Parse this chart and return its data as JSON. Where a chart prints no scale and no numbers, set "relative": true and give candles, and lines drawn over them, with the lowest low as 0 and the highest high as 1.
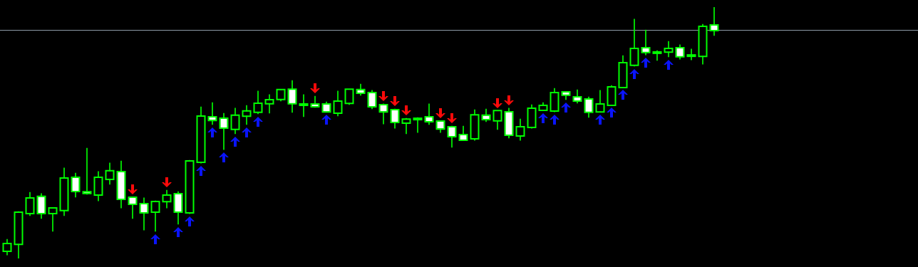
{
  "chart_data": {
    "type": "candlestick",
    "relative": true,
    "legend": false,
    "color": "#00ff00",
    "colors": [
      "#000000",
      "#000000",
      "#000000",
      "#ffffff",
      "#000000",
      "#000000",
      "#ffffff",
      "#ffffff",
      "#000000",
      "#000000",
      "#ffffff",
      "#ffffff",
      "#ffffff",
      "#000000",
      "#000000",
      "#ffffff",
      "#000000",
      "#000000",
      "#ffffff",
      "#ffffff",
      "#000000",
      "#000000",
      "#000000",
      "#000000",
      "#000000",
      "#ffffff",
      "#000000",
      "#ffffff",
      "#ffffff",
      "#000000",
      "#000000",
      "#ffffff",
      "#ffffff",
      "#ffffff",
      "#ffffff",
      "#000000",
      "#000000",
      "#ffffff",
      "#ffffff",
      "#ffffff",
      "#ffffff",
      "#000000",
      "#ffffff",
      "#000000",
      "#ffffff",
      "#000000",
      "#000000",
      "#000000",
      "#000000",
      "#ffffff",
      "#ffffff",
      "#ffffff",
      "#000000",
      "#000000",
      "#000000",
      "#000000",
      "#ffffff",
      "#000000",
      "#000000",
      "#ffffff",
      "#000000",
      "#000000",
      "#ffffff"
    ],
    "categories": [
      null,
      null,
      null,
      null,
      null,
      null,
      null,
      null,
      null,
      null,
      null,
      null,
      null,
      null,
      null,
      null,
      null,
      null,
      null,
      null,
      null,
      null,
      null,
      null,
      null,
      null,
      null,
      null,
      null,
      null,
      null,
      null,
      null,
      null,
      null,
      null,
      null,
      null,
      null,
      null,
      null,
      null,
      null,
      null,
      null,
      null,
      null,
      null,
      null,
      null,
      null,
      null,
      null,
      null,
      null,
      null,
      null,
      null,
      null,
      null,
      null,
      null,
      null
    ],
    "ohlc": [
      [
        0.031,
        0.076,
        0.014,
        0.057
      ],
      [
        0.059,
        0.187,
        0,
        0.181
      ],
      [
        0.181,
        0.263,
        0.17,
        0.238
      ],
      [
        0.244,
        0.258,
        0.159,
        0.181
      ],
      [
        0.181,
        0.201,
        0.108,
        0.198
      ],
      [
        0.193,
        0.36,
        0.17,
        0.317
      ],
      [
        0.32,
        0.34,
        0.244,
        0.269
      ],
      [
        0.263,
        0.439,
        0.255,
        0.261
      ],
      [
        0.255,
        0.346,
        0.229,
        0.32
      ],
      [
        0.317,
        0.38,
        0.295,
        0.346
      ],
      [
        0.343,
        0.388,
        0.201,
        0.238
      ],
      [
        0.241,
        0.244,
        0.159,
        0.218
      ],
      [
        0.215,
        0.241,
        0.113,
        0.184
      ],
      [
        0.187,
        0.229,
        0.108,
        0.224
      ],
      [
        0.229,
        0.272,
        0.201,
        0.249
      ],
      [
        0.255,
        0.266,
        0.136,
        0.187
      ],
      [
        0.184,
        0.391,
        0.178,
        0.385
      ],
      [
        0.385,
        0.603,
        0.379,
        0.564
      ],
      [
        0.561,
        0.62,
        0.533,
        0.552
      ],
      [
        0.555,
        0.578,
        0.433,
        0.521
      ],
      [
        0.516,
        0.598,
        0.496,
        0.567
      ],
      [
        0.569,
        0.609,
        0.533,
        0.584
      ],
      [
        0.584,
        0.666,
        0.575,
        0.615
      ],
      [
        0.618,
        0.652,
        0.578,
        0.629
      ],
      [
        0.635,
        0.671,
        0.626,
        0.669
      ],
      [
        0.671,
        0.708,
        0.581,
        0.618
      ],
      [
        0.612,
        0.652,
        0.564,
        0.612
      ],
      [
        0.612,
        0.646,
        0.601,
        0.606
      ],
      [
        0.612,
        0.623,
        0.584,
        0.586
      ],
      [
        0.581,
        0.666,
        0.567,
        0.623
      ],
      [
        0.62,
        0.671,
        0.612,
        0.671
      ],
      [
        0.669,
        0.694,
        0.649,
        0.66
      ],
      [
        0.657,
        0.669,
        0.595,
        0.606
      ],
      [
        0.609,
        0.615,
        0.535,
        0.586
      ],
      [
        0.589,
        0.595,
        0.518,
        0.544
      ],
      [
        0.541,
        0.558,
        0.496,
        0.552
      ],
      [
        0.555,
        0.561,
        0.501,
        0.555
      ],
      [
        0.561,
        0.615,
        0.533,
        0.547
      ],
      [
        0.544,
        0.547,
        0.501,
        0.518
      ],
      [
        0.521,
        0.527,
        0.442,
        0.487
      ],
      [
        0.49,
        0.527,
        0.47,
        0.473
      ],
      [
        0.479,
        0.592,
        0.47,
        0.569
      ],
      [
        0.567,
        0.595,
        0.544,
        0.555
      ],
      [
        0.55,
        0.586,
        0.513,
        0.586
      ],
      [
        0.581,
        0.598,
        0.479,
        0.493
      ],
      [
        0.49,
        0.555,
        0.47,
        0.521
      ],
      [
        0.524,
        0.612,
        0.518,
        0.595
      ],
      [
        0.592,
        0.62,
        0.589,
        0.606
      ],
      [
        0.589,
        0.677,
        0.583,
        0.657
      ],
      [
        0.66,
        0.663,
        0.632,
        0.652
      ],
      [
        0.64,
        0.671,
        0.618,
        0.629
      ],
      [
        0.632,
        0.643,
        0.561,
        0.584
      ],
      [
        0.586,
        0.669,
        0.584,
        0.612
      ],
      [
        0.612,
        0.688,
        0.612,
        0.68
      ],
      [
        0.683,
        0.807,
        0.683,
        0.776
      ],
      [
        0.771,
        0.952,
        0.765,
        0.833
      ],
      [
        0.836,
        0.909,
        0.81,
        0.822
      ],
      [
        0.819,
        0.827,
        0.788,
        0.819
      ],
      [
        0.824,
        0.864,
        0.802,
        0.833
      ],
      [
        0.836,
        0.85,
        0.793,
        0.805
      ],
      [
        0.807,
        0.833,
        0.79,
        0.807
      ],
      [
        0.807,
        0.932,
        0.773,
        0.921
      ],
      [
        0.926,
        1,
        0.887,
        0.909
      ]
    ],
    "ref_lines": [
      {
        "axis": "y",
        "value": 0.909,
        "color": "#8c9aa6"
      }
    ]
  }
}
